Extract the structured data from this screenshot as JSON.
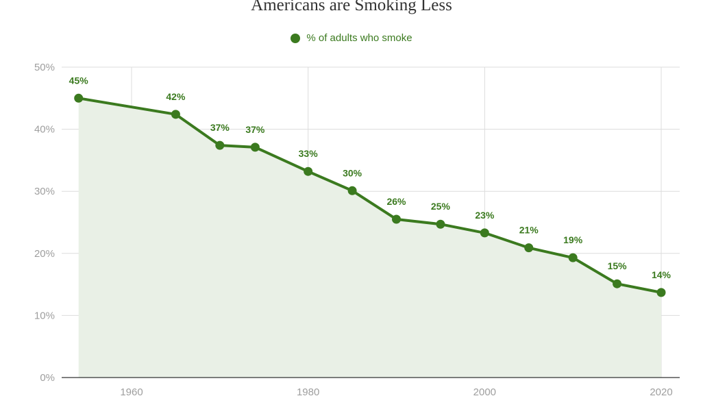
{
  "chart_data": {
    "type": "line",
    "title": "Americans are Smoking Less",
    "series": [
      {
        "name": "% of adults who smoke",
        "x": [
          1954,
          1965,
          1970,
          1974,
          1980,
          1985,
          1990,
          1995,
          2000,
          2005,
          2010,
          2015,
          2020
        ],
        "values": [
          45,
          42.4,
          37.4,
          37.1,
          33.2,
          30.1,
          25.5,
          24.7,
          23.3,
          20.9,
          19.3,
          15.1,
          13.7
        ],
        "labels": [
          "45%",
          "42%",
          "37%",
          "37%",
          "33%",
          "30%",
          "26%",
          "25%",
          "23%",
          "21%",
          "19%",
          "15%",
          "14%"
        ]
      }
    ],
    "xticks": [
      "1960",
      "1980",
      "2000",
      "2020"
    ],
    "xtick_values": [
      1960,
      1980,
      2000,
      2020
    ],
    "yticks": [
      "0%",
      "10%",
      "20%",
      "30%",
      "40%",
      "50%"
    ],
    "ytick_values": [
      0,
      10,
      20,
      30,
      40,
      50
    ],
    "xlim": [
      1954,
      2020
    ],
    "ylim": [
      0,
      50
    ],
    "grid": true,
    "area_fill": true,
    "legend_position": "top",
    "colors": {
      "series": "#3b7a1f",
      "fill": "#e9f0e6",
      "grid": "#dcdcdc",
      "axis": "#333333"
    }
  }
}
